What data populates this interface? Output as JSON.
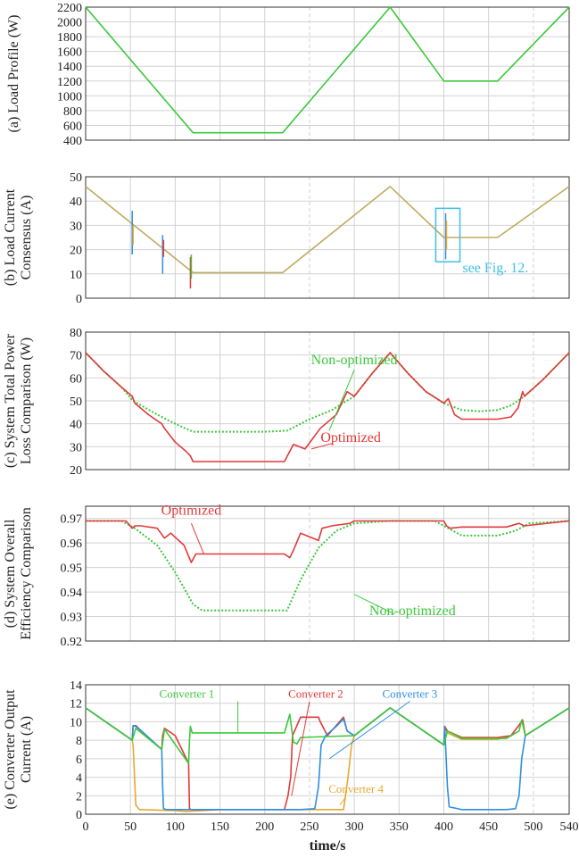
{
  "colors": {
    "green": "#3cc83c",
    "red": "#e23a3a",
    "blue": "#2f8fe0",
    "orange": "#e6a830",
    "olive": "#c0aa60",
    "cyan_box": "#3ec0ea",
    "grid": "#d2d2d2",
    "axis": "#333333"
  },
  "chart_data": [
    {
      "type": "line",
      "ylabel": "(a) Load Profile (W)",
      "xlabel": "",
      "xlim": [
        0,
        540
      ],
      "ylim": [
        400,
        2200
      ],
      "yticks": [
        "400",
        "600",
        "800",
        "1000",
        "1200",
        "1400",
        "1600",
        "1800",
        "2000",
        "2200"
      ],
      "series": [
        {
          "color_key": "green",
          "x": [
            0,
            120,
            220,
            340,
            400,
            460,
            540
          ],
          "y": [
            2200,
            500,
            500,
            2200,
            1200,
            1200,
            2200
          ]
        }
      ]
    },
    {
      "type": "line",
      "ylabel_lines": [
        "(b) Load Current",
        "Consensus (A)"
      ],
      "xlim": [
        0,
        540
      ],
      "ylim": [
        0,
        50
      ],
      "yticks": [
        "0",
        "10",
        "20",
        "30",
        "40",
        "50"
      ],
      "series": [
        {
          "color_key": "olive",
          "x": [
            0,
            120,
            220,
            340,
            400,
            460,
            540
          ],
          "y": [
            46,
            10.5,
            10.5,
            46,
            25,
            25,
            46
          ]
        }
      ],
      "spikes": [
        {
          "x": 52,
          "y1": 18,
          "y2": 36,
          "color_key": "blue"
        },
        {
          "x": 53,
          "y1": 22,
          "y2": 30,
          "color_key": "orange"
        },
        {
          "x": 86,
          "y1": 10,
          "y2": 26,
          "color_key": "blue"
        },
        {
          "x": 87,
          "y1": 17,
          "y2": 24,
          "color_key": "red"
        },
        {
          "x": 117,
          "y1": 4,
          "y2": 17,
          "color_key": "red"
        },
        {
          "x": 118,
          "y1": 8,
          "y2": 18,
          "color_key": "green"
        },
        {
          "x": 402,
          "y1": 16,
          "y2": 35,
          "color_key": "blue"
        },
        {
          "x": 403,
          "y1": 20,
          "y2": 32,
          "color_key": "orange"
        }
      ],
      "annotation": {
        "text": "see Fig. 12.",
        "box_x": [
          391,
          418
        ],
        "box_y": [
          15,
          37
        ]
      }
    },
    {
      "type": "line",
      "ylabel_lines": [
        "(c) System Total Power",
        "Loss Comparison (W)"
      ],
      "xlim": [
        0,
        540
      ],
      "ylim": [
        20,
        80
      ],
      "yticks": [
        "20",
        "30",
        "40",
        "50",
        "60",
        "70",
        "80"
      ],
      "series": [
        {
          "name": "Non-optimized",
          "color_key": "green",
          "dashed": true,
          "x": [
            0,
            20,
            40,
            53,
            80,
            100,
            120,
            160,
            200,
            225,
            250,
            275,
            300,
            320,
            340,
            360,
            380,
            400,
            420,
            440,
            460,
            475,
            490,
            510,
            540
          ],
          "y": [
            71,
            63,
            56,
            50,
            44,
            40,
            36.5,
            36.5,
            36.5,
            37,
            42,
            46,
            52,
            62,
            71,
            62,
            54,
            49,
            46,
            45.5,
            46,
            48,
            52,
            59,
            71
          ]
        },
        {
          "name": "Optimized",
          "color_key": "red",
          "x": [
            0,
            20,
            40,
            52,
            55,
            70,
            85,
            88,
            100,
            112,
            117,
            120,
            160,
            200,
            222,
            232,
            245,
            262,
            280,
            292,
            300,
            320,
            340,
            360,
            380,
            400,
            405,
            412,
            420,
            460,
            475,
            483,
            488,
            490,
            510,
            540
          ],
          "y": [
            71,
            63,
            56,
            52,
            49,
            44,
            40,
            38,
            32,
            28,
            26,
            23.5,
            23.5,
            23.5,
            23.5,
            31,
            29,
            38,
            44,
            54,
            52,
            62,
            71,
            62,
            54,
            49,
            51,
            44,
            42,
            42,
            43,
            47,
            54,
            52,
            59,
            71
          ]
        }
      ],
      "labels": [
        {
          "text": "Non-optimized",
          "color_key": "green",
          "x": 300,
          "y": 66
        },
        {
          "text": "Optimized",
          "color_key": "red",
          "x": 296,
          "y": 32
        }
      ]
    },
    {
      "type": "line",
      "ylabel_lines": [
        "(d) System Overall",
        "Efficiency Comparison"
      ],
      "xlim": [
        0,
        540
      ],
      "ylim": [
        0.92,
        0.975
      ],
      "yticks": [
        "0.92",
        "0.93",
        "0.94",
        "0.95",
        "0.96",
        "0.97"
      ],
      "series": [
        {
          "name": "Non-optimized",
          "color_key": "green",
          "dashed": true,
          "x": [
            0,
            40,
            55,
            80,
            100,
            120,
            130,
            180,
            225,
            240,
            260,
            280,
            300,
            340,
            390,
            410,
            420,
            460,
            480,
            495,
            540
          ],
          "y": [
            0.969,
            0.969,
            0.966,
            0.959,
            0.948,
            0.935,
            0.9325,
            0.9325,
            0.9325,
            0.945,
            0.958,
            0.965,
            0.968,
            0.969,
            0.969,
            0.965,
            0.963,
            0.963,
            0.965,
            0.968,
            0.969
          ]
        },
        {
          "name": "Optimized",
          "color_key": "red",
          "x": [
            0,
            45,
            52,
            55,
            62,
            80,
            88,
            95,
            110,
            118,
            123,
            160,
            222,
            228,
            232,
            240,
            260,
            264,
            275,
            295,
            300,
            340,
            400,
            403,
            407,
            420,
            470,
            484,
            490,
            540
          ],
          "y": [
            0.969,
            0.969,
            0.966,
            0.967,
            0.967,
            0.966,
            0.962,
            0.964,
            0.959,
            0.952,
            0.9555,
            0.9555,
            0.9555,
            0.954,
            0.957,
            0.964,
            0.961,
            0.966,
            0.967,
            0.968,
            0.969,
            0.969,
            0.969,
            0.967,
            0.966,
            0.9665,
            0.9665,
            0.968,
            0.967,
            0.969
          ]
        }
      ],
      "labels": [
        {
          "text": "Optimized",
          "color_key": "red",
          "x": 118,
          "y": 0.9715
        },
        {
          "text": "Non-optimized",
          "color_key": "green",
          "x": 365,
          "y": 0.9305
        }
      ]
    },
    {
      "type": "line",
      "ylabel_lines": [
        "(e) Converter Output",
        "Current (A)"
      ],
      "xlabel": "time/s",
      "xlim": [
        0,
        540
      ],
      "ylim": [
        0,
        14
      ],
      "xticks": [
        "0",
        "50",
        "100",
        "150",
        "200",
        "250",
        "300",
        "350",
        "400",
        "450",
        "500",
        "540"
      ],
      "yticks": [
        "0",
        "2",
        "4",
        "6",
        "8",
        "10",
        "12",
        "14"
      ],
      "series": [
        {
          "name": "Converter 4",
          "color_key": "orange",
          "x": [
            0,
            52,
            53,
            56,
            60,
            100,
            112,
            150,
            225,
            240,
            262,
            280,
            288,
            293,
            297,
            300,
            340,
            400,
            401,
            404,
            420,
            460,
            475,
            483,
            488,
            491,
            540
          ],
          "y": [
            11.5,
            8,
            7.5,
            1,
            0.5,
            0.4,
            0.3,
            0.5,
            0.5,
            0.5,
            0.5,
            0.5,
            0.5,
            4,
            7.5,
            8.5,
            11.5,
            7.5,
            9.3,
            8.8,
            8.1,
            8.1,
            8.5,
            9.5,
            10,
            8.5,
            11.5
          ]
        },
        {
          "name": "Converter 2",
          "color_key": "red",
          "x": [
            0,
            52,
            53,
            56,
            60,
            85,
            86,
            88,
            100,
            115,
            116,
            118,
            150,
            222,
            226,
            229,
            231,
            240,
            260,
            262,
            270,
            288,
            292,
            300,
            340,
            400,
            401,
            404,
            420,
            460,
            475,
            483,
            488,
            491,
            540
          ],
          "y": [
            11.5,
            8,
            9.5,
            9.6,
            9.2,
            7,
            8.5,
            9.3,
            8.5,
            5.5,
            0.6,
            0.5,
            0.5,
            0.5,
            2,
            4,
            8.5,
            10.5,
            10.5,
            10,
            8.5,
            10.5,
            9,
            8.5,
            11.5,
            7.5,
            9.5,
            9,
            8.3,
            8.3,
            8.5,
            9.5,
            10.2,
            8.5,
            11.5
          ]
        },
        {
          "name": "Converter 3",
          "color_key": "blue",
          "x": [
            0,
            52,
            53,
            56,
            60,
            85,
            86,
            87,
            90,
            100,
            150,
            225,
            240,
            256,
            260,
            263,
            268,
            280,
            288,
            292,
            300,
            340,
            400,
            401,
            404,
            406,
            420,
            470,
            480,
            484,
            487,
            491,
            540
          ],
          "y": [
            11.5,
            8,
            9.6,
            9.5,
            9.2,
            7,
            3,
            0.6,
            0.5,
            0.5,
            0.5,
            0.5,
            0.5,
            0.6,
            3,
            7.5,
            8.5,
            9.5,
            10.3,
            9,
            8.5,
            11.5,
            7.5,
            9.5,
            3,
            0.8,
            0.5,
            0.5,
            0.6,
            2,
            6,
            8.5,
            11.5
          ]
        },
        {
          "name": "Converter 1",
          "color_key": "green",
          "x": [
            0,
            52,
            56,
            85,
            88,
            115,
            116,
            117,
            119,
            150,
            222,
            228,
            232,
            236,
            240,
            300,
            340,
            400,
            404,
            420,
            470,
            484,
            487,
            491,
            540
          ],
          "y": [
            11.5,
            8,
            9.3,
            7,
            9.2,
            5.5,
            8,
            9.5,
            8.8,
            8.8,
            8.8,
            10.8,
            7.8,
            7.6,
            8.3,
            8.5,
            11.5,
            7.5,
            9,
            8.2,
            8.2,
            9,
            10.2,
            8.5,
            11.5
          ]
        }
      ],
      "labels": [
        {
          "text": "Converter 1",
          "color_key": "green",
          "x": 113,
          "y": 12.6
        },
        {
          "text": "Converter 2",
          "color_key": "red",
          "x": 257,
          "y": 12.6
        },
        {
          "text": "Converter 3",
          "color_key": "blue",
          "x": 362,
          "y": 12.6
        },
        {
          "text": "Converter 4",
          "color_key": "orange",
          "x": 302,
          "y": 2.3
        }
      ]
    }
  ]
}
